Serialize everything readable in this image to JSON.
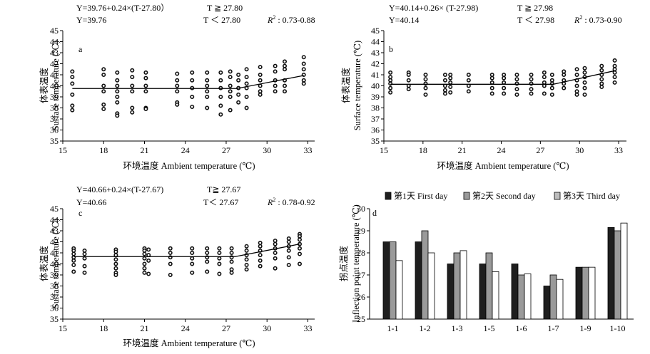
{
  "chart_data": [
    {
      "type": "scatter",
      "panel_label": "a",
      "equation_upper": "Y=39.76+0.24×(T-27.80）",
      "condition_upper": "T ≧ 27.80",
      "equation_lower": "Y=39.76",
      "condition_lower": "T ＜ 27.80",
      "r2_symbol": "R",
      "r2_exp": "2",
      "r2_value": ": 0.73-0.88",
      "xlabel": "环境温度 Ambient temperature (℃)",
      "ylabel_cn": "体表温度",
      "ylabel_en": "Surface temperature (℃)",
      "xlim": [
        15,
        33.5
      ],
      "ylim": [
        35,
        45
      ],
      "xticks": [
        15,
        18,
        21,
        24,
        27,
        30,
        33
      ],
      "yticks": [
        35,
        36,
        37,
        38,
        39,
        40,
        41,
        42,
        43,
        44,
        45
      ],
      "grid": false,
      "fit": {
        "plateau": 39.76,
        "slope": 0.24,
        "breakpoint": 27.8
      },
      "points": [
        {
          "x": 15.7,
          "y": [
            41.3,
            40.8,
            40.2,
            39.2,
            38.2,
            37.8
          ]
        },
        {
          "x": 18.0,
          "y": [
            41.5,
            41.0,
            40.0,
            39.5,
            38.3,
            37.9
          ]
        },
        {
          "x": 19.0,
          "y": [
            41.2,
            40.5,
            40.0,
            39.5,
            39.0,
            38.5,
            37.5,
            37.3
          ]
        },
        {
          "x": 20.1,
          "y": [
            41.4,
            40.8,
            40.0,
            39.5,
            38.0,
            37.6
          ]
        },
        {
          "x": 21.1,
          "y": [
            41.2,
            40.7,
            40.0,
            39.5,
            38.0,
            37.9
          ]
        },
        {
          "x": 23.4,
          "y": [
            41.1,
            40.5,
            40.0,
            39.5,
            38.5,
            38.3
          ]
        },
        {
          "x": 24.5,
          "y": [
            41.2,
            40.5,
            39.8,
            39.0,
            38.1
          ]
        },
        {
          "x": 25.6,
          "y": [
            41.2,
            40.5,
            40.0,
            39.5,
            39.0,
            38.0
          ]
        },
        {
          "x": 26.6,
          "y": [
            41.2,
            40.5,
            39.8,
            39.0,
            38.2,
            37.4
          ]
        },
        {
          "x": 27.3,
          "y": [
            41.3,
            40.8,
            40.0,
            39.5,
            39.0,
            37.8
          ]
        },
        {
          "x": 27.9,
          "y": [
            41.0,
            40.5,
            39.8,
            39.2,
            38.5
          ]
        },
        {
          "x": 28.5,
          "y": [
            41.5,
            40.8,
            40.2,
            39.8,
            39.0,
            38.0
          ]
        },
        {
          "x": 29.5,
          "y": [
            41.7,
            41.0,
            40.5,
            40.0,
            39.5,
            39.2
          ]
        },
        {
          "x": 30.6,
          "y": [
            41.8,
            41.3,
            40.5,
            40.0,
            39.5
          ]
        },
        {
          "x": 31.3,
          "y": [
            42.2,
            41.8,
            41.5,
            40.5,
            40.0,
            39.5
          ]
        },
        {
          "x": 32.7,
          "y": [
            42.6,
            42.0,
            41.5,
            41.0,
            40.5,
            40.2
          ]
        }
      ]
    },
    {
      "type": "scatter",
      "panel_label": "b",
      "equation_upper": "Y=40.14+0.26× (T-27.98)",
      "condition_upper": "T ≧ 27.98",
      "equation_lower": "Y=40.14",
      "condition_lower": "T ＜ 27.98",
      "r2_symbol": "R",
      "r2_exp": "2",
      "r2_value": ": 0.73-0.90",
      "xlabel": "环境温度 Ambient temperature (℃)",
      "ylabel_cn": "体表温度",
      "ylabel_en": "Surface temperature (℃)",
      "xlim": [
        15,
        33.6
      ],
      "ylim": [
        35,
        45
      ],
      "xticks": [
        15,
        18,
        21,
        24,
        27,
        30,
        33
      ],
      "yticks": [
        35,
        36,
        37,
        38,
        39,
        40,
        41,
        42,
        43,
        44,
        45
      ],
      "grid": false,
      "fit": {
        "plateau": 40.14,
        "slope": 0.26,
        "breakpoint": 27.98
      },
      "points": [
        {
          "x": 15.5,
          "y": [
            41.2,
            40.8,
            40.5,
            40.2,
            39.8,
            39.4
          ]
        },
        {
          "x": 16.9,
          "y": [
            41.2,
            41.0,
            40.5,
            40.0,
            39.7
          ]
        },
        {
          "x": 18.2,
          "y": [
            41.0,
            40.6,
            40.2,
            39.8,
            39.2
          ]
        },
        {
          "x": 19.7,
          "y": [
            41.0,
            40.5,
            40.0,
            39.6,
            39.3
          ]
        },
        {
          "x": 20.1,
          "y": [
            41.0,
            40.7,
            40.3,
            39.9,
            39.4
          ]
        },
        {
          "x": 21.5,
          "y": [
            41.0,
            40.5,
            40.0,
            39.5
          ]
        },
        {
          "x": 23.3,
          "y": [
            41.0,
            40.7,
            40.3,
            39.8,
            39.3
          ]
        },
        {
          "x": 24.2,
          "y": [
            41.0,
            40.7,
            40.3,
            39.8,
            39.3
          ]
        },
        {
          "x": 25.2,
          "y": [
            41.0,
            40.6,
            40.2,
            39.7,
            39.2
          ]
        },
        {
          "x": 26.3,
          "y": [
            41.0,
            40.6,
            40.2,
            39.7,
            39.3
          ]
        },
        {
          "x": 27.3,
          "y": [
            41.2,
            40.8,
            40.3,
            40.0,
            39.3
          ]
        },
        {
          "x": 27.9,
          "y": [
            41.0,
            40.5,
            40.2,
            39.8,
            39.2
          ]
        },
        {
          "x": 28.8,
          "y": [
            41.3,
            41.0,
            40.5,
            40.2,
            39.8
          ]
        },
        {
          "x": 29.8,
          "y": [
            41.5,
            41.0,
            40.5,
            40.0,
            39.5,
            39.2
          ]
        },
        {
          "x": 30.4,
          "y": [
            41.6,
            41.2,
            40.8,
            40.3,
            39.8,
            39.2
          ]
        },
        {
          "x": 31.7,
          "y": [
            41.8,
            41.4,
            41.0,
            40.6,
            40.2,
            39.9
          ]
        },
        {
          "x": 32.7,
          "y": [
            42.3,
            41.8,
            41.5,
            41.2,
            40.8,
            40.3
          ]
        }
      ]
    },
    {
      "type": "scatter",
      "panel_label": "c",
      "equation_upper": "Y=40.66+0.24×(T-27.67)",
      "condition_upper": "T≧ 27.67",
      "equation_lower": "Y=40.66",
      "condition_lower": "T＜ 27.67",
      "r2_symbol": "R",
      "r2_exp": "2",
      "r2_value": ": 0.78-0.92",
      "xlabel": "环境温度 Ambient temperature (℃)",
      "ylabel_cn": "体表温度",
      "ylabel_en": "Surface temperature (℃)",
      "xlim": [
        15,
        33.5
      ],
      "ylim": [
        35,
        45
      ],
      "xticks": [
        15,
        18,
        21,
        24,
        27,
        30,
        33
      ],
      "yticks": [
        35,
        36,
        37,
        38,
        39,
        40,
        41,
        42,
        43,
        44,
        45
      ],
      "grid": false,
      "fit": {
        "plateau": 40.66,
        "slope": 0.24,
        "breakpoint": 27.67
      },
      "points": [
        {
          "x": 15.8,
          "y": [
            41.4,
            41.2,
            40.9,
            40.6,
            40.3,
            39.9,
            39.3
          ]
        },
        {
          "x": 16.6,
          "y": [
            41.2,
            40.9,
            40.5,
            39.8,
            39.2
          ]
        },
        {
          "x": 18.9,
          "y": [
            41.3,
            41.1,
            40.8,
            40.4,
            40.0,
            39.6,
            39.2,
            39.0
          ]
        },
        {
          "x": 21.0,
          "y": [
            41.4,
            41.2,
            40.9,
            40.5,
            40.0,
            39.6,
            39.2
          ]
        },
        {
          "x": 21.3,
          "y": [
            41.3,
            40.8,
            40.3,
            39.1
          ]
        },
        {
          "x": 22.9,
          "y": [
            41.4,
            41.0,
            40.6,
            40.0,
            39.0
          ]
        },
        {
          "x": 24.5,
          "y": [
            41.4,
            41.0,
            40.5,
            40.0,
            39.2
          ]
        },
        {
          "x": 25.6,
          "y": [
            41.4,
            41.0,
            40.6,
            40.2,
            39.3
          ]
        },
        {
          "x": 26.5,
          "y": [
            41.4,
            41.0,
            40.5,
            40.0,
            39.1
          ]
        },
        {
          "x": 27.4,
          "y": [
            41.4,
            41.0,
            40.6,
            40.2,
            39.5,
            39.2
          ]
        },
        {
          "x": 28.5,
          "y": [
            41.6,
            41.2,
            40.8,
            40.4,
            39.9,
            39.5
          ]
        },
        {
          "x": 29.5,
          "y": [
            41.9,
            41.6,
            41.2,
            40.8,
            40.3,
            39.8
          ]
        },
        {
          "x": 30.6,
          "y": [
            42.1,
            41.8,
            41.4,
            41.0,
            40.5,
            39.6
          ]
        },
        {
          "x": 31.6,
          "y": [
            42.3,
            42.0,
            41.6,
            41.2,
            40.6,
            39.9
          ]
        },
        {
          "x": 32.4,
          "y": [
            42.7,
            42.5,
            42.2,
            41.8,
            41.4,
            40.9,
            40.0
          ]
        }
      ]
    },
    {
      "type": "bar",
      "panel_label": "d",
      "ylabel_cn": "拐点温度",
      "ylabel_en": "Inflection point temperature (℃)",
      "ylim": [
        25,
        30
      ],
      "yticks": [
        25,
        26,
        27,
        28,
        29,
        30
      ],
      "grid": false,
      "legend_position": "top",
      "categories": [
        "1-1",
        "1-2",
        "1-3",
        "1-5",
        "1-6",
        "1-7",
        "1-9",
        "1-10"
      ],
      "series": [
        {
          "name": "第1天 First day",
          "color": "#1e1e1e",
          "values": [
            28.5,
            28.5,
            27.5,
            27.5,
            27.5,
            26.5,
            27.35,
            29.15
          ]
        },
        {
          "name": "第2天 Second day",
          "color": "#9a9a9a",
          "values": [
            28.5,
            29.0,
            28.0,
            28.0,
            27.0,
            27.0,
            27.35,
            29.0
          ]
        },
        {
          "name": "第3天 Third day",
          "color": "#ffffff",
          "values": [
            27.65,
            28.0,
            28.1,
            27.15,
            27.05,
            26.8,
            27.35,
            29.35
          ]
        }
      ]
    }
  ]
}
